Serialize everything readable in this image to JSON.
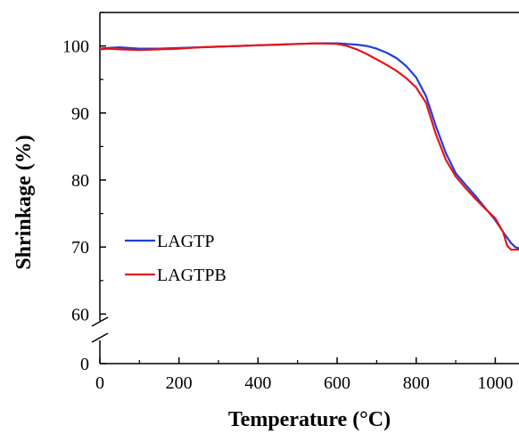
{
  "chart_data": {
    "type": "line",
    "xlabel": "Temperature (°C)",
    "ylabel": "Shrinkage (%)",
    "xlim": [
      0,
      1060
    ],
    "ylim_upper": [
      55,
      105
    ],
    "y_axis_break": true,
    "y_break_low_tick": 0,
    "x_ticks": [
      0,
      200,
      400,
      600,
      800,
      1000
    ],
    "y_ticks": [
      60,
      70,
      80,
      90,
      100
    ],
    "x_tick_labels": [
      "0",
      "200",
      "400",
      "600",
      "800",
      "1000"
    ],
    "y_tick_labels": [
      "60",
      "70",
      "80",
      "90",
      "100"
    ],
    "y_low_tick_label": "0",
    "legend_position": "left-center",
    "series": [
      {
        "name": "LAGTP",
        "color": "#1f3fd6",
        "x": [
          0,
          20,
          50,
          100,
          150,
          200,
          250,
          300,
          350,
          400,
          450,
          500,
          550,
          600,
          625,
          650,
          675,
          700,
          725,
          750,
          775,
          800,
          825,
          850,
          875,
          900,
          925,
          950,
          975,
          1000,
          1025,
          1040,
          1050,
          1060
        ],
        "y": [
          99.6,
          99.7,
          99.8,
          99.6,
          99.6,
          99.7,
          99.8,
          99.9,
          100.0,
          100.1,
          100.2,
          100.3,
          100.4,
          100.4,
          100.3,
          100.2,
          100.0,
          99.6,
          99.0,
          98.2,
          97.0,
          95.3,
          92.5,
          88.0,
          84.0,
          81.0,
          79.3,
          77.6,
          75.8,
          74.0,
          71.8,
          70.6,
          70.0,
          69.8
        ]
      },
      {
        "name": "LAGTPB",
        "color": "#e8141b",
        "x": [
          0,
          20,
          50,
          100,
          150,
          200,
          250,
          300,
          350,
          400,
          450,
          500,
          550,
          600,
          625,
          650,
          675,
          700,
          725,
          750,
          775,
          800,
          825,
          850,
          875,
          900,
          925,
          950,
          975,
          1000,
          1020,
          1030,
          1040,
          1050,
          1060
        ],
        "y": [
          99.5,
          99.6,
          99.5,
          99.4,
          99.5,
          99.6,
          99.8,
          99.9,
          100.0,
          100.1,
          100.2,
          100.3,
          100.4,
          100.3,
          100.0,
          99.5,
          98.8,
          98.0,
          97.2,
          96.3,
          95.2,
          93.8,
          91.5,
          86.8,
          83.0,
          80.5,
          78.8,
          77.2,
          75.7,
          74.3,
          72.2,
          70.2,
          69.6,
          69.6,
          69.6
        ]
      }
    ]
  }
}
